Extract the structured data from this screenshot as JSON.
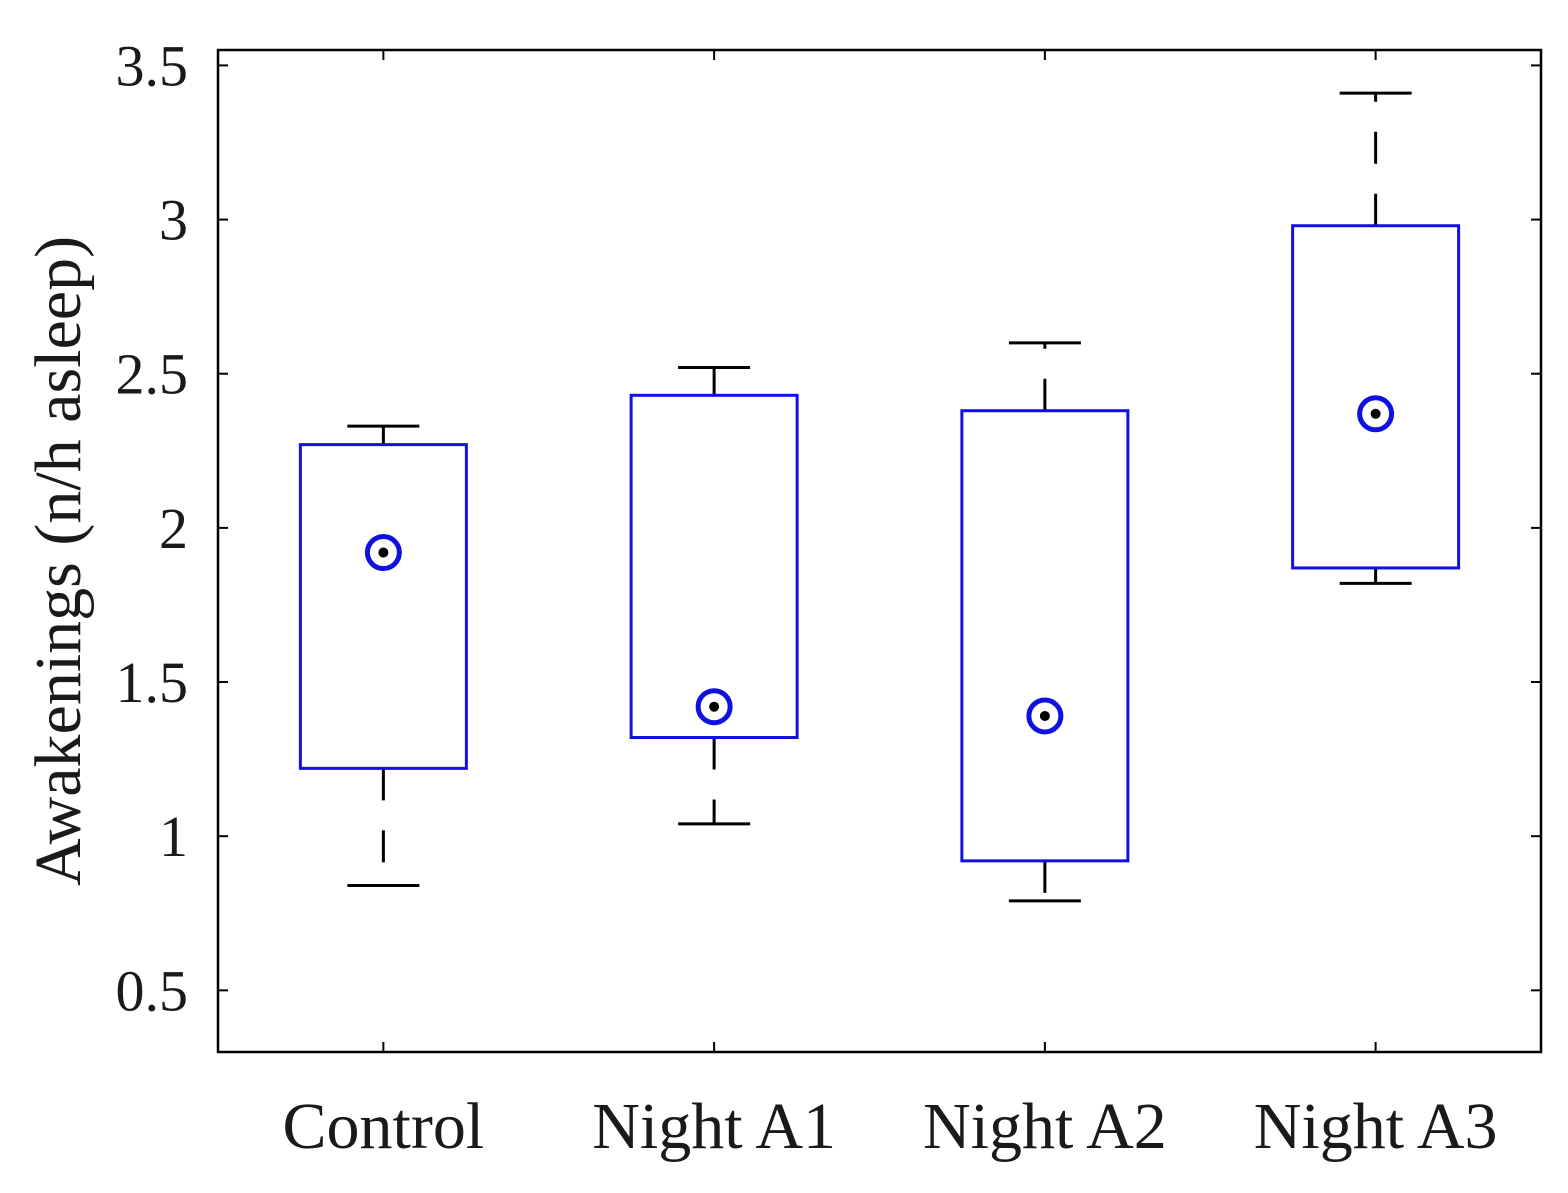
{
  "chart_data": {
    "type": "box",
    "title": "",
    "xlabel": "",
    "ylabel": "Awakenings (n/h asleep)",
    "ylim": [
      0.3,
      3.55
    ],
    "yticks": [
      0.5,
      1,
      1.5,
      2,
      2.5,
      3,
      3.5
    ],
    "ytick_labels": [
      "0.5",
      "1",
      "1.5",
      "2",
      "2.5",
      "3",
      "3.5"
    ],
    "categories": [
      "Control",
      "Night A1",
      "Night A2",
      "Night A3"
    ],
    "boxes": [
      {
        "category": "Control",
        "whisker_low": 0.84,
        "q1": 1.22,
        "median": 1.92,
        "q3": 2.27,
        "whisker_high": 2.33
      },
      {
        "category": "Night A1",
        "whisker_low": 1.04,
        "q1": 1.32,
        "median": 1.42,
        "q3": 2.43,
        "whisker_high": 2.52
      },
      {
        "category": "Night A2",
        "whisker_low": 0.79,
        "q1": 0.92,
        "median": 1.39,
        "q3": 2.38,
        "whisker_high": 2.6
      },
      {
        "category": "Night A3",
        "whisker_low": 1.82,
        "q1": 1.87,
        "median": 2.37,
        "q3": 2.98,
        "whisker_high": 3.41
      }
    ],
    "grid": false,
    "legend": "none",
    "colors": {
      "box": "#1010e0",
      "median_ring": "#1010e0",
      "median_dot": "#000000",
      "whisker": "#000000",
      "axis": "#000000"
    }
  }
}
